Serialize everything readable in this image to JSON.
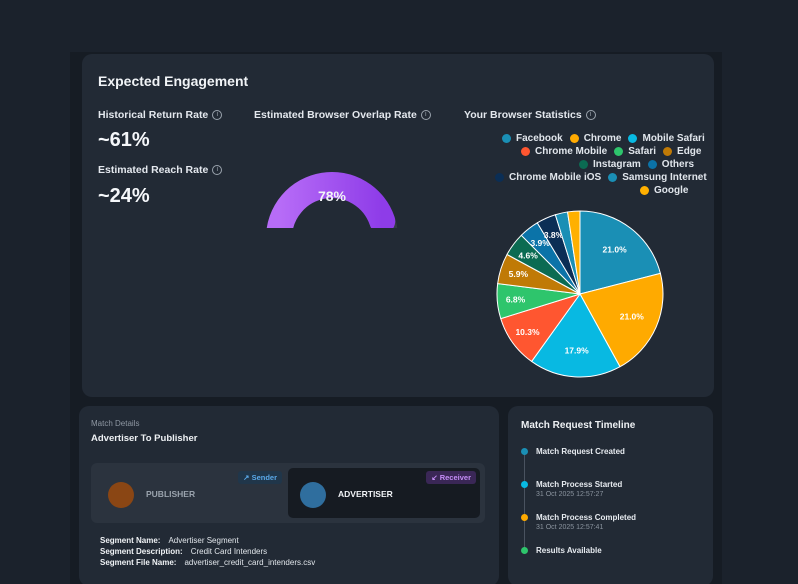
{
  "engagement": {
    "title": "Expected Engagement",
    "historical_return": {
      "label": "Historical Return Rate",
      "value": "~61%"
    },
    "reach": {
      "label": "Estimated Reach Rate",
      "value": "~24%"
    },
    "overlap": {
      "label": "Estimated Browser Overlap Rate",
      "value": "78%",
      "percent": 78
    },
    "browser_stats_label": "Your Browser Statistics",
    "info_icon": "i"
  },
  "chart_data": {
    "type": "pie",
    "title": "Your Browser Statistics",
    "labels": [
      "Facebook",
      "Chrome",
      "Mobile Safari",
      "Chrome Mobile",
      "Safari",
      "Edge",
      "Instagram",
      "Others",
      "Chrome Mobile iOS",
      "Samsung Internet",
      "Google"
    ],
    "values": [
      21.0,
      21.0,
      17.9,
      10.3,
      6.8,
      5.9,
      4.6,
      3.9,
      3.8,
      2.4,
      2.4
    ],
    "data_labels": [
      "21.0%",
      "21.0%",
      "17.9%",
      "10.3%",
      "6.8%",
      "5.9%",
      "4.6%",
      "3.9%",
      "3.8%",
      "",
      ""
    ],
    "colors": [
      "#1a8fb5",
      "#ffaa00",
      "#08b9e2",
      "#ff5630",
      "#2ec56c",
      "#c07a06",
      "#0b6b52",
      "#0b73a8",
      "#0b2e55",
      "#1a8fb5",
      "#ffb000"
    ],
    "legend_rows": [
      [
        "Facebook",
        "Chrome",
        "Mobile Safari"
      ],
      [
        "Chrome Mobile",
        "Safari",
        "Edge"
      ],
      [
        "Instagram",
        "Others"
      ],
      [
        "Chrome Mobile iOS",
        "Samsung Internet"
      ],
      [
        "Google"
      ]
    ]
  },
  "match_details": {
    "section_label": "Match Details",
    "title": "Advertiser To Publisher",
    "sender_tag": "Sender",
    "receiver_tag": "Receiver",
    "publisher": "PUBLISHER",
    "advertiser": "ADVERTISER",
    "segment_name_label": "Segment Name:",
    "segment_name": "Advertiser Segment",
    "segment_desc_label": "Segment Description:",
    "segment_desc": "Credit Card Intenders",
    "segment_file_label": "Segment File Name:",
    "segment_file": "advertiser_credit_card_intenders.csv"
  },
  "timeline": {
    "title": "Match Request Timeline",
    "events": [
      {
        "label": "Match Request Created",
        "time": "",
        "color": "#1a8fb5"
      },
      {
        "label": "Match Process Started",
        "time": "31 Oct 2025 12:57:27",
        "color": "#08b9e2"
      },
      {
        "label": "Match Process Completed",
        "time": "31 Oct 2025 12:57:41",
        "color": "#ffaa00"
      },
      {
        "label": "Results Available",
        "time": "",
        "color": "#2ec56c"
      }
    ]
  }
}
